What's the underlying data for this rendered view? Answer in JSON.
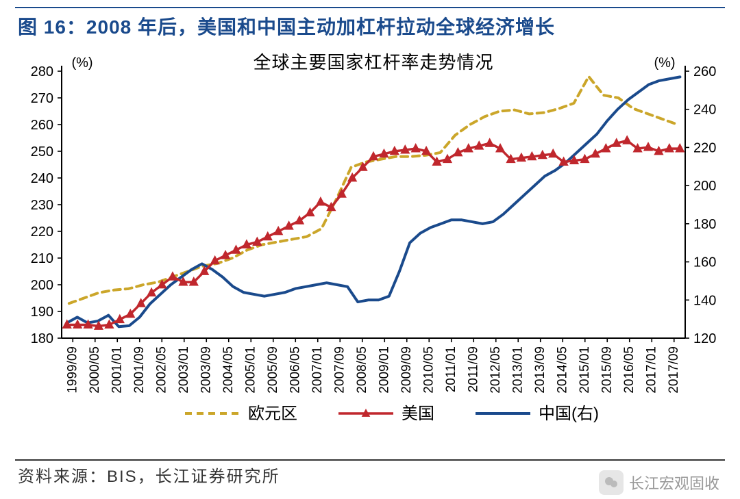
{
  "figure_title": "图 16：2008 年后，美国和中国主动加杠杆拉动全球经济增长",
  "chart_title": "全球主要国家杠杆率走势情况",
  "source_label": "资料来源：BIS，长江证券研究所",
  "watermark_text": "长江宏观固收",
  "left_axis": {
    "unit_label": "(%)",
    "min": 180,
    "max": 280,
    "step": 10,
    "fontsize": 20
  },
  "right_axis": {
    "unit_label": "(%)",
    "min": 120,
    "max": 260,
    "step": 20,
    "fontsize": 20
  },
  "x_categories": [
    "1999/09",
    "2000/05",
    "2001/01",
    "2001/09",
    "2002/05",
    "2003/01",
    "2003/09",
    "2004/05",
    "2005/01",
    "2005/09",
    "2006/05",
    "2007/01",
    "2007/09",
    "2008/05",
    "2009/01",
    "2009/09",
    "2010/05",
    "2011/01",
    "2011/09",
    "2012/05",
    "2013/01",
    "2013/09",
    "2014/05",
    "2015/01",
    "2015/09",
    "2016/05",
    "2017/01",
    "2017/09"
  ],
  "x_label_fontsize": 19,
  "legend": [
    {
      "key": "eurozone",
      "label": "欧元区"
    },
    {
      "key": "usa",
      "label": "美国"
    },
    {
      "key": "china",
      "label": "中国(右)"
    }
  ],
  "legend_fontsize": 24,
  "series": {
    "eurozone": {
      "axis": "left",
      "color": "#cba62a",
      "line_width": 4,
      "dash": "10,7",
      "marker": null,
      "values": [
        193,
        195,
        197,
        198,
        198.5,
        200,
        201,
        203,
        205,
        207,
        208,
        210,
        213,
        215,
        216,
        217,
        218,
        221,
        232,
        244,
        246,
        247,
        248,
        248,
        248.5,
        249.5,
        256,
        260,
        263,
        265,
        265.5,
        264,
        264.5,
        266,
        268,
        278,
        271,
        270,
        266,
        264,
        262,
        260
      ]
    },
    "usa": {
      "axis": "left",
      "color": "#c0272d",
      "line_width": 3.5,
      "dash": null,
      "marker": "triangle",
      "marker_size": 7,
      "values": [
        185,
        185,
        185,
        184.5,
        185,
        187,
        189,
        193,
        197,
        200,
        203,
        201,
        201,
        205,
        209,
        211,
        213,
        215,
        216,
        218,
        220,
        222,
        224,
        227,
        231,
        229,
        234,
        240,
        244,
        248,
        249,
        250,
        250.5,
        251,
        250,
        246,
        247,
        249.5,
        251,
        252,
        253,
        251,
        247,
        247.5,
        248,
        248.5,
        249,
        246,
        246.5,
        247,
        249,
        251,
        253,
        254,
        251,
        251.5,
        250,
        251,
        251
      ]
    },
    "china": {
      "axis": "right",
      "color": "#1a4a8c",
      "line_width": 4,
      "dash": null,
      "marker": null,
      "values": [
        128,
        131,
        128,
        129,
        132,
        126,
        126.5,
        131,
        138,
        143,
        148,
        152,
        156,
        159,
        156,
        152,
        147,
        144,
        143,
        142,
        143,
        144,
        146,
        147,
        148,
        149,
        148,
        147,
        139,
        140,
        140,
        142,
        155,
        170,
        175,
        178,
        180,
        182,
        182,
        181,
        180,
        181,
        185,
        190,
        195,
        200,
        205,
        208,
        212,
        217,
        222,
        227,
        234,
        240,
        245,
        249,
        253,
        255,
        256,
        257
      ]
    }
  },
  "plot": {
    "background": "#ffffff",
    "grid": false,
    "border_color": "#000000",
    "border_width": 2,
    "tick_length": 6,
    "tick_width": 1.6
  }
}
